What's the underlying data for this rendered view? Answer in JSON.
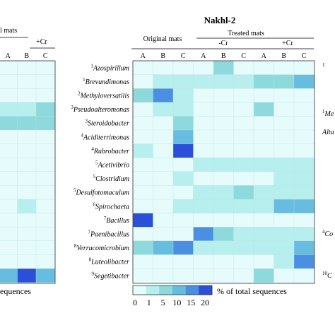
{
  "panel_title": "Nakhl-2",
  "left_panel": {
    "header_fragment": "l mats",
    "treated_fragment": "+Cr",
    "columns": [
      "A",
      "B",
      "C"
    ],
    "legend_fragment": "equences"
  },
  "right_edge_labels": [
    {
      "sup": "1",
      "text": ""
    },
    {
      "sup": "1",
      "text": "Me"
    },
    {
      "sup": "",
      "text": "Alta"
    },
    {
      "sup": "4",
      "text": "Co"
    },
    {
      "sup": "10",
      "text": "C"
    }
  ],
  "legend": {
    "unit_label": "% of total sequences",
    "ticks": [
      "0",
      "1",
      "5",
      "10",
      "15",
      "20"
    ],
    "colors": [
      "#e6fbfb",
      "#b7efee",
      "#8ed9dc",
      "#66bde0",
      "#4a8fe2",
      "#2b4fd6"
    ]
  },
  "chart_data": {
    "type": "heatmap",
    "title": "Nakhl-2",
    "group_headers": {
      "original": "Original mats",
      "treated": "Treated mats",
      "minus_cr": "-Cr",
      "plus_cr": "+Cr"
    },
    "columns": [
      "A",
      "B",
      "C",
      "A",
      "B",
      "C",
      "A",
      "B",
      "C"
    ],
    "column_groups": [
      "Original mats",
      "Original mats",
      "Original mats",
      "-Cr",
      "-Cr",
      "-Cr",
      "+Cr",
      "+Cr",
      "+Cr"
    ],
    "rows": [
      {
        "sup": "1",
        "name": "Azospirillum"
      },
      {
        "sup": "1",
        "name": "Brevundimonas"
      },
      {
        "sup": "2",
        "name": "Methyloversatilis"
      },
      {
        "sup": "3",
        "name": "Pseudoalteromonas"
      },
      {
        "sup": "3",
        "name": "Steroidobacter"
      },
      {
        "sup": "4",
        "name": "Aciditerrimonas"
      },
      {
        "sup": "4",
        "name": "Rubrobacter"
      },
      {
        "sup": "5",
        "name": "Acetivibrio"
      },
      {
        "sup": "5",
        "name": "Clostridium"
      },
      {
        "sup": "5",
        "name": "Desulfotomaculum"
      },
      {
        "sup": "6",
        "name": "Spirochaeta"
      },
      {
        "sup": "7",
        "name": "Bacillus"
      },
      {
        "sup": "7",
        "name": "Paenibacillus"
      },
      {
        "sup": "8",
        "name": "Verrucomicrobium"
      },
      {
        "sup": "8",
        "name": "Luteolibacter"
      },
      {
        "sup": "9",
        "name": "Segetibacter"
      }
    ],
    "values": [
      [
        0,
        0,
        0,
        0,
        5,
        0,
        0,
        0,
        0
      ],
      [
        0,
        1,
        1,
        1,
        1,
        1,
        5,
        5,
        10
      ],
      [
        5,
        15,
        1,
        0,
        0,
        0,
        0,
        0,
        0
      ],
      [
        0,
        1,
        1,
        0,
        0,
        0,
        5,
        0,
        0
      ],
      [
        0,
        0,
        5,
        0,
        0,
        0,
        0,
        0,
        0
      ],
      [
        0,
        0,
        10,
        0,
        0,
        0,
        0,
        0,
        0
      ],
      [
        1,
        0,
        20,
        0,
        0,
        0,
        0,
        0,
        0
      ],
      [
        0,
        0,
        0,
        1,
        1,
        1,
        1,
        1,
        1
      ],
      [
        0,
        0,
        1,
        0,
        0,
        0,
        0,
        1,
        1
      ],
      [
        0,
        0,
        0,
        1,
        1,
        5,
        1,
        1,
        1
      ],
      [
        0,
        0,
        1,
        1,
        1,
        1,
        1,
        10,
        10
      ],
      [
        20,
        0,
        0,
        0,
        0,
        0,
        0,
        0,
        0
      ],
      [
        0,
        0,
        0,
        15,
        5,
        1,
        1,
        1,
        1
      ],
      [
        5,
        10,
        15,
        1,
        1,
        1,
        1,
        1,
        10
      ],
      [
        0,
        0,
        0,
        0,
        0,
        0,
        0,
        1,
        15
      ],
      [
        0,
        0,
        0,
        0,
        0,
        0,
        5,
        0,
        0
      ]
    ],
    "left_panel_values": [
      [
        0,
        0,
        0
      ],
      [
        0,
        0,
        0
      ],
      [
        0,
        0,
        0
      ],
      [
        1,
        1,
        5
      ],
      [
        5,
        5,
        5
      ],
      [
        0,
        0,
        0
      ],
      [
        0,
        0,
        0
      ],
      [
        0,
        0,
        0
      ],
      [
        0,
        0,
        0
      ],
      [
        0,
        0,
        0
      ],
      [
        0,
        1,
        0
      ],
      [
        0,
        0,
        0
      ],
      [
        0,
        0,
        0
      ],
      [
        0,
        0,
        0
      ],
      [
        0,
        0,
        0
      ],
      [
        10,
        20,
        10
      ]
    ],
    "legend_title": "% of total sequences",
    "scale_breaks": [
      0,
      1,
      5,
      10,
      15,
      20
    ]
  }
}
